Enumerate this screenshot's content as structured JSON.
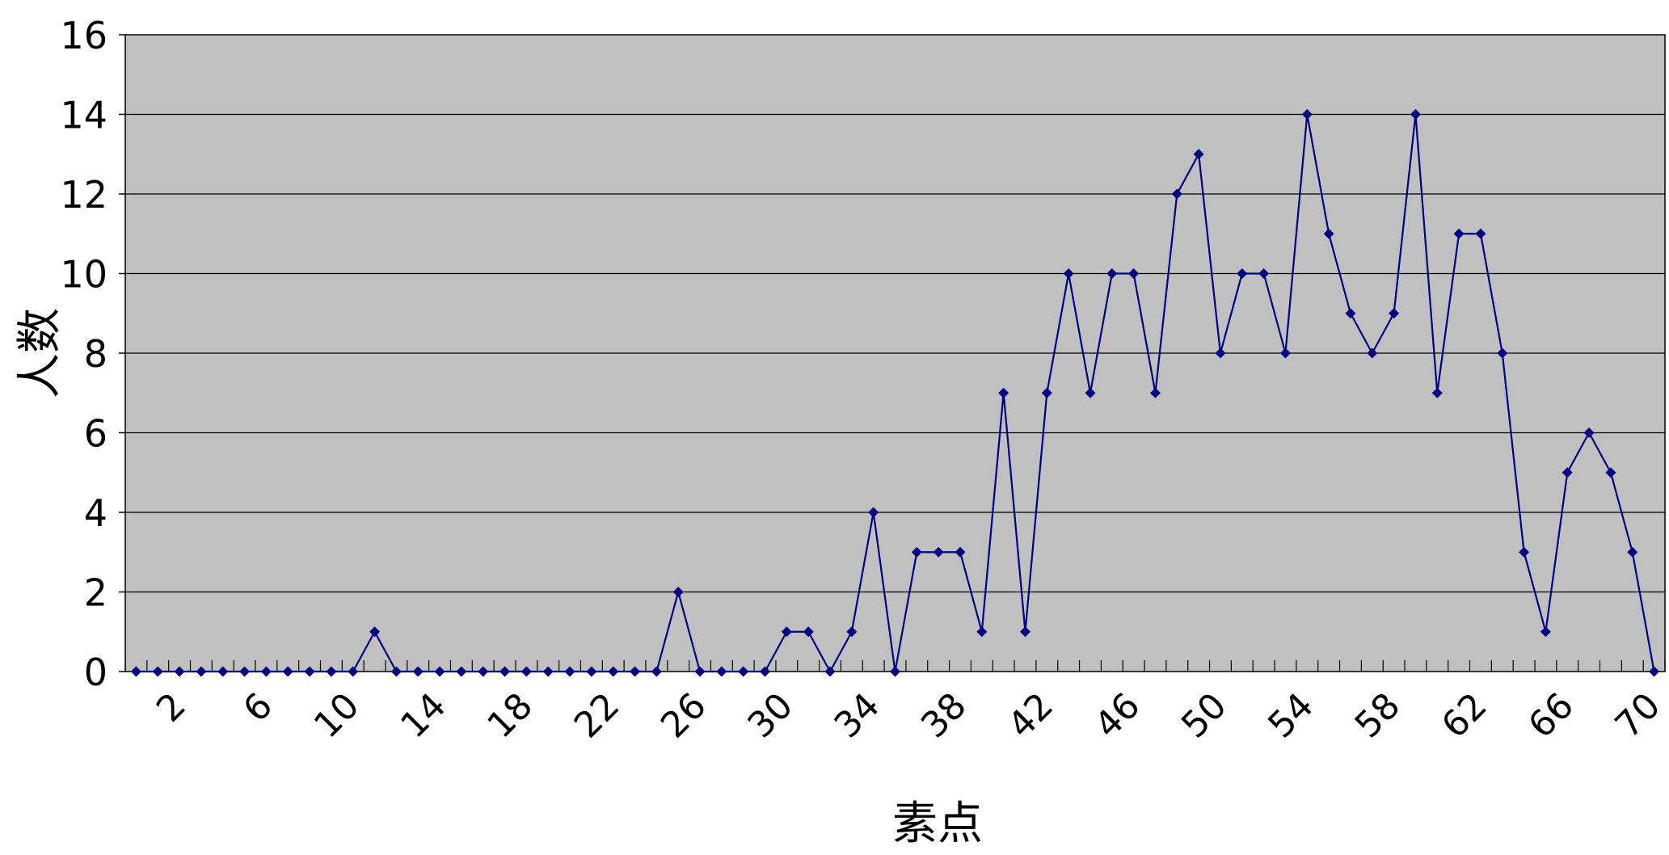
{
  "chart_data": {
    "type": "line",
    "xlabel": "素点",
    "ylabel": "人数",
    "ylim": [
      0,
      16
    ],
    "ytick_step": 2,
    "x": [
      0,
      1,
      2,
      3,
      4,
      5,
      6,
      7,
      8,
      9,
      10,
      11,
      12,
      13,
      14,
      15,
      16,
      17,
      18,
      19,
      20,
      21,
      22,
      23,
      24,
      25,
      26,
      27,
      28,
      29,
      30,
      31,
      32,
      33,
      34,
      35,
      36,
      37,
      38,
      39,
      40,
      41,
      42,
      43,
      44,
      45,
      46,
      47,
      48,
      49,
      50,
      51,
      52,
      53,
      54,
      55,
      56,
      57,
      58,
      59,
      60,
      61,
      62,
      63,
      64,
      65,
      66,
      67,
      68,
      69,
      70
    ],
    "x_tick_labels": [
      2,
      6,
      10,
      14,
      18,
      22,
      26,
      30,
      34,
      38,
      42,
      46,
      50,
      54,
      58,
      62,
      66,
      70
    ],
    "grid": "horizontal",
    "legend": "none",
    "colors": {
      "plot_bg": "#c0c0c0",
      "line": "#000080",
      "grid": "#000000"
    },
    "series": [
      {
        "values": [
          0,
          0,
          0,
          0,
          0,
          0,
          0,
          0,
          0,
          0,
          0,
          1,
          0,
          0,
          0,
          0,
          0,
          0,
          0,
          0,
          0,
          0,
          0,
          0,
          0,
          2,
          0,
          0,
          0,
          0,
          1,
          1,
          0,
          1,
          4,
          0,
          3,
          3,
          3,
          1,
          7,
          1,
          7,
          10,
          7,
          10,
          10,
          7,
          12,
          13,
          8,
          10,
          10,
          8,
          14,
          11,
          9,
          8,
          9,
          14,
          7,
          11,
          11,
          8,
          3,
          1,
          5,
          6,
          5,
          3,
          0
        ]
      }
    ]
  }
}
